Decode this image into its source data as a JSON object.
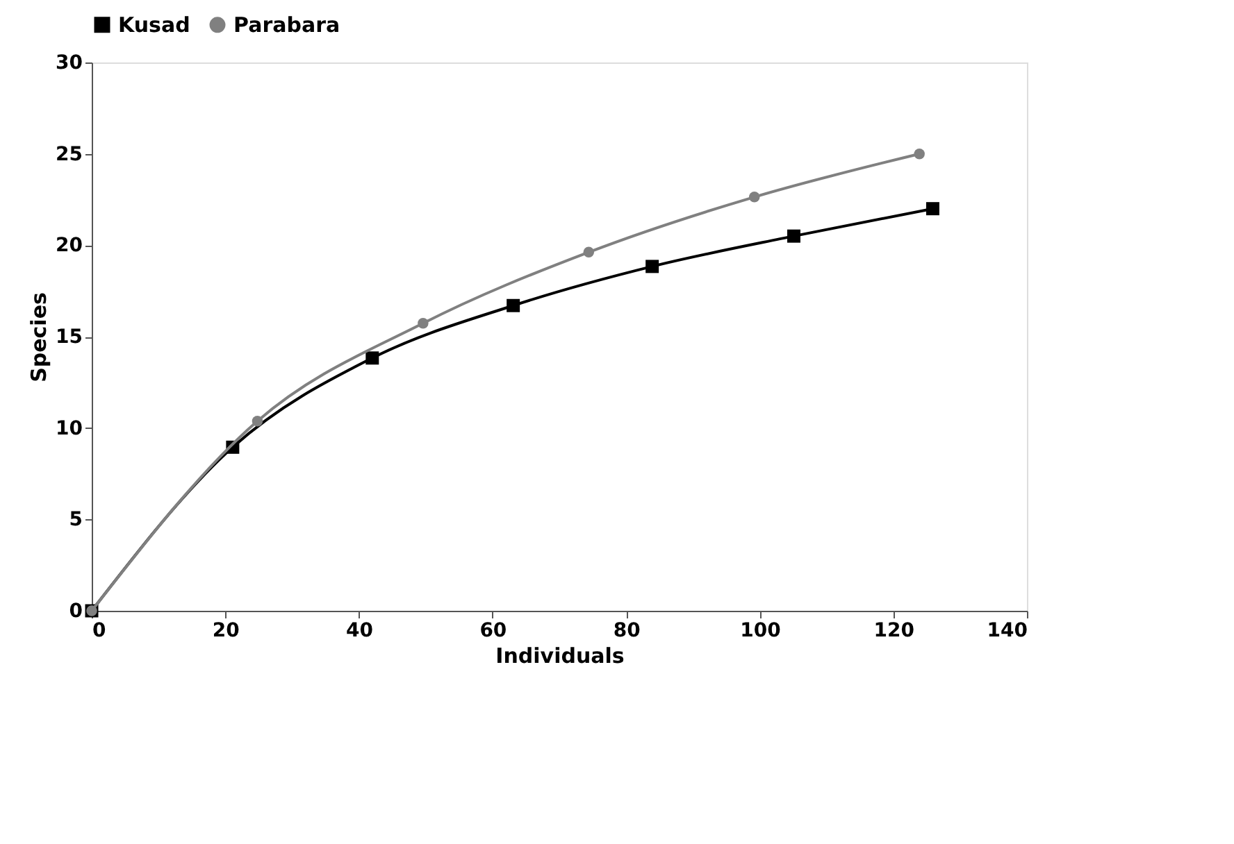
{
  "chart_data": {
    "type": "line",
    "xlabel": "Individuals",
    "ylabel": "Species",
    "xlim": [
      0,
      140
    ],
    "xticks": [
      0,
      20,
      40,
      60,
      80,
      100,
      120,
      140
    ],
    "ylim": [
      0,
      30
    ],
    "yticks": [
      0,
      5,
      10,
      15,
      20,
      25,
      30
    ],
    "grid": false,
    "legend": "top",
    "series": [
      {
        "name": "Kusad",
        "color": "#000000",
        "marker": "square",
        "x": [
          0,
          21.1,
          42.0,
          63.1,
          83.9,
          105.1,
          125.9
        ],
        "values": [
          0,
          8.95,
          13.83,
          16.7,
          18.84,
          20.5,
          22.0
        ]
      },
      {
        "name": "Parabara",
        "color": "#808080",
        "marker": "circle",
        "x": [
          0,
          24.8,
          49.6,
          74.4,
          99.2,
          123.9
        ],
        "values": [
          0,
          10.38,
          15.73,
          19.62,
          22.64,
          25.0
        ]
      }
    ]
  }
}
